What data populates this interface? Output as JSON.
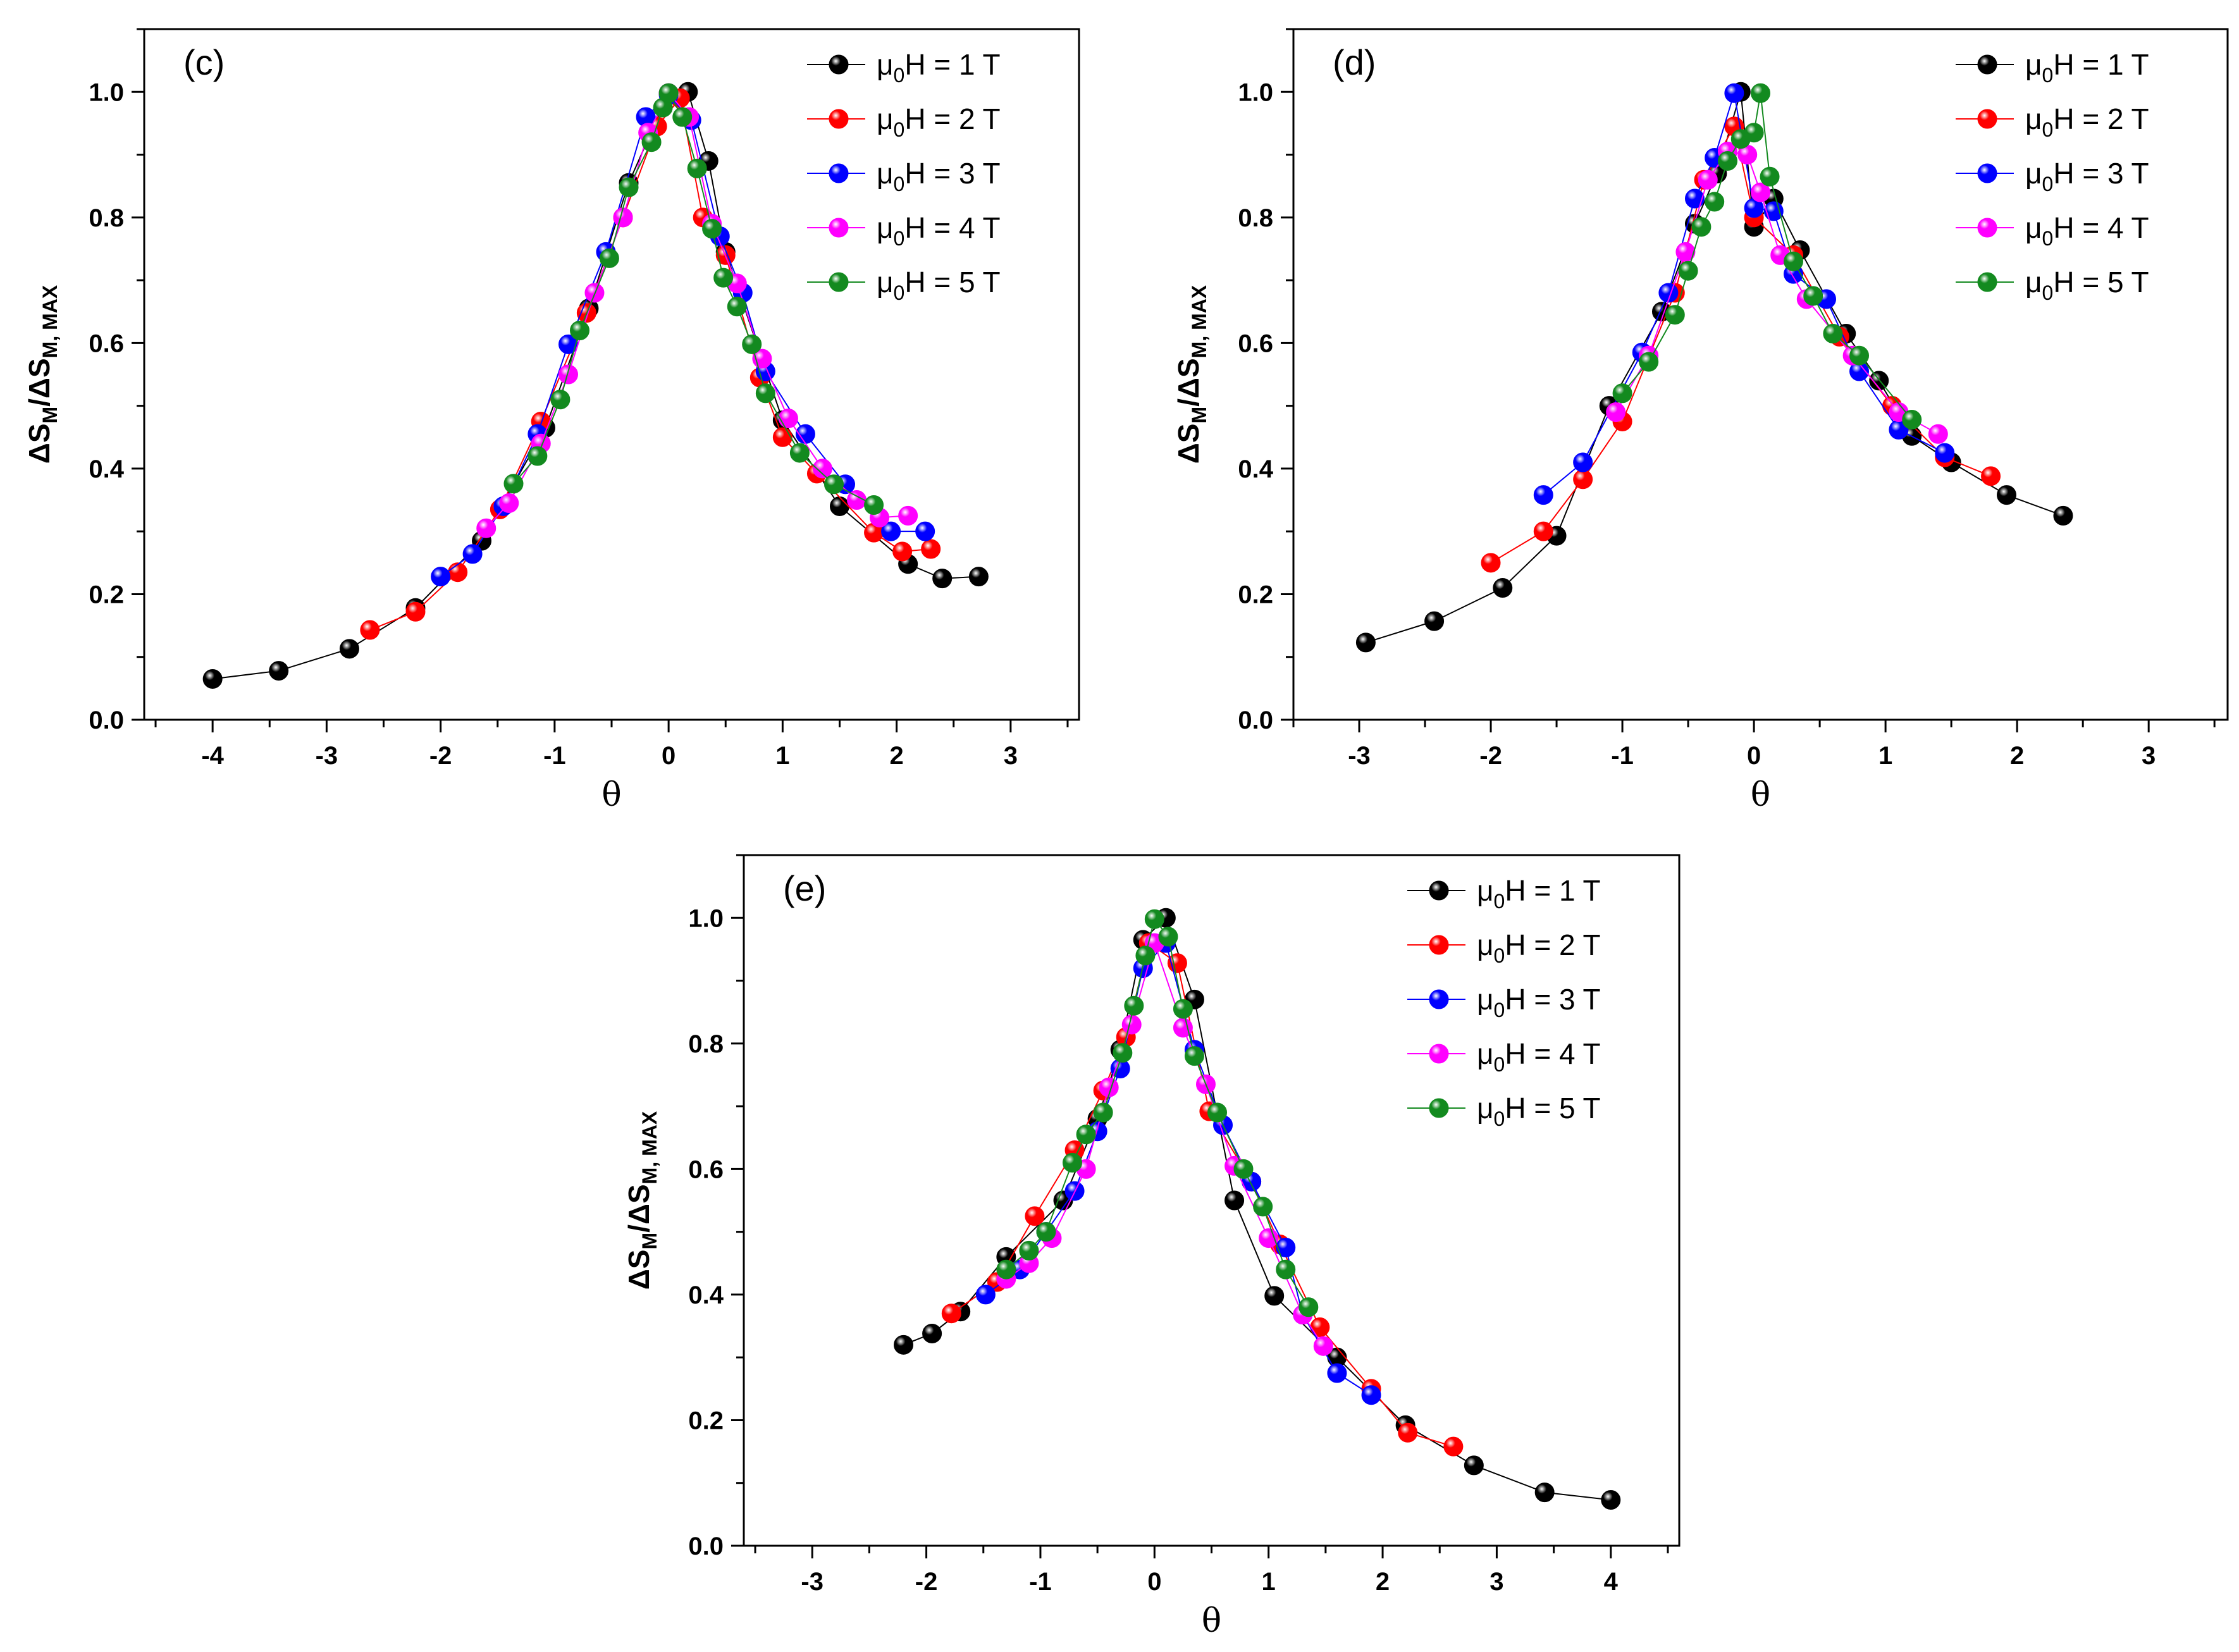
{
  "chart_data": [
    {
      "type": "scatter",
      "panel_label": "(c)",
      "xlabel": "θ",
      "ylabel": {
        "prefix": "ΔS",
        "sub1": "M",
        "mid": "/ΔS",
        "sub2": "M, MAX"
      },
      "xlim": [
        -4.6,
        3.6
      ],
      "ylim": [
        0,
        1.1
      ],
      "xticks": [
        -4,
        -3,
        -2,
        -1,
        0,
        1,
        2,
        3
      ],
      "yticks": [
        0.0,
        0.2,
        0.4,
        0.6,
        0.8,
        1.0
      ],
      "ytick_labels": [
        "0.0",
        "0.2",
        "0.4",
        "0.6",
        "0.8",
        "1.0"
      ],
      "legend_position": "top-right",
      "series": [
        {
          "name": {
            "pre": "μ",
            "sub": "0",
            "post": "H = 1 T"
          },
          "color": "#000000",
          "x": [
            -4.0,
            -3.42,
            -2.8,
            -2.22,
            -1.64,
            -1.08,
            -0.7,
            -0.35,
            0.0,
            0.17,
            0.35,
            0.5,
            1.0,
            1.5,
            2.1,
            2.4,
            2.72
          ],
          "y": [
            0.065,
            0.078,
            0.113,
            0.178,
            0.285,
            0.465,
            0.655,
            0.855,
            0.998,
            1.0,
            0.89,
            0.745,
            0.477,
            0.34,
            0.248,
            0.225,
            0.228
          ]
        },
        {
          "name": {
            "pre": "μ",
            "sub": "0",
            "post": "H = 2 T"
          },
          "color": "#ff0000",
          "x": [
            -2.62,
            -2.22,
            -1.85,
            -1.48,
            -1.12,
            -0.72,
            -0.4,
            -0.1,
            0.1,
            0.3,
            0.5,
            0.8,
            1.0,
            1.3,
            1.8,
            2.05,
            2.3
          ],
          "y": [
            0.143,
            0.172,
            0.235,
            0.335,
            0.475,
            0.648,
            0.8,
            0.945,
            0.99,
            0.8,
            0.74,
            0.545,
            0.45,
            0.392,
            0.298,
            0.268,
            0.272
          ]
        },
        {
          "name": {
            "pre": "μ",
            "sub": "0",
            "post": "H = 3 T"
          },
          "color": "#0000ff",
          "x": [
            -2.0,
            -1.72,
            -1.45,
            -1.15,
            -0.88,
            -0.55,
            -0.2,
            0.0,
            0.2,
            0.45,
            0.65,
            0.85,
            1.2,
            1.55,
            1.95,
            2.25
          ],
          "y": [
            0.228,
            0.264,
            0.34,
            0.455,
            0.598,
            0.745,
            0.96,
            0.995,
            0.955,
            0.77,
            0.68,
            0.555,
            0.455,
            0.375,
            0.3,
            0.3
          ]
        },
        {
          "name": {
            "pre": "μ",
            "sub": "0",
            "post": "H = 4 T"
          },
          "color": "#ff00ff",
          "x": [
            -1.6,
            -1.4,
            -1.12,
            -0.88,
            -0.65,
            -0.4,
            -0.18,
            0.0,
            0.18,
            0.38,
            0.6,
            0.82,
            1.05,
            1.35,
            1.65,
            1.85,
            2.1
          ],
          "y": [
            0.305,
            0.345,
            0.44,
            0.55,
            0.68,
            0.8,
            0.935,
            0.998,
            0.96,
            0.79,
            0.695,
            0.575,
            0.48,
            0.4,
            0.35,
            0.322,
            0.325
          ]
        },
        {
          "name": {
            "pre": "μ",
            "sub": "0",
            "post": "H = 5 T"
          },
          "color": "#138a1f",
          "x": [
            -1.36,
            -1.15,
            -0.95,
            -0.78,
            -0.52,
            -0.35,
            -0.15,
            -0.05,
            0.0,
            0.12,
            0.25,
            0.38,
            0.48,
            0.6,
            0.73,
            0.85,
            1.15,
            1.45,
            1.8
          ],
          "y": [
            0.376,
            0.42,
            0.51,
            0.62,
            0.735,
            0.848,
            0.92,
            0.975,
            0.998,
            0.96,
            0.878,
            0.782,
            0.704,
            0.658,
            0.598,
            0.52,
            0.425,
            0.375,
            0.342
          ]
        }
      ]
    },
    {
      "type": "scatter",
      "panel_label": "(d)",
      "xlabel": "θ",
      "ylabel": {
        "prefix": "ΔS",
        "sub1": "M",
        "mid": "/ΔS",
        "sub2": "M, MAX"
      },
      "xlim": [
        -3.5,
        3.6
      ],
      "ylim": [
        0,
        1.1
      ],
      "xticks": [
        -3,
        -2,
        -1,
        0,
        1,
        2,
        3
      ],
      "yticks": [
        0.0,
        0.2,
        0.4,
        0.6,
        0.8,
        1.0
      ],
      "ytick_labels": [
        "0.0",
        "0.2",
        "0.4",
        "0.6",
        "0.8",
        "1.0"
      ],
      "legend_position": "top-right",
      "series": [
        {
          "name": {
            "pre": "μ",
            "sub": "0",
            "post": "H = 1 T"
          },
          "color": "#000000",
          "x": [
            -2.95,
            -2.43,
            -1.91,
            -1.5,
            -1.1,
            -0.7,
            -0.45,
            -0.28,
            -0.1,
            0.0,
            0.15,
            0.35,
            0.7,
            0.95,
            1.2,
            1.5,
            1.92,
            2.35
          ],
          "y": [
            0.123,
            0.157,
            0.21,
            0.293,
            0.5,
            0.65,
            0.79,
            0.87,
            1.0,
            0.785,
            0.83,
            0.748,
            0.615,
            0.54,
            0.452,
            0.41,
            0.358,
            0.325
          ]
        },
        {
          "name": {
            "pre": "μ",
            "sub": "0",
            "post": "H = 2 T"
          },
          "color": "#ff0000",
          "x": [
            -2.0,
            -1.6,
            -1.3,
            -1.0,
            -0.6,
            -0.38,
            -0.15,
            0.0,
            0.3,
            0.65,
            1.05,
            1.45,
            1.8
          ],
          "y": [
            0.25,
            0.3,
            0.383,
            0.475,
            0.68,
            0.86,
            0.945,
            0.8,
            0.74,
            0.61,
            0.5,
            0.418,
            0.388
          ]
        },
        {
          "name": {
            "pre": "μ",
            "sub": "0",
            "post": "H = 3 T"
          },
          "color": "#0000ff",
          "x": [
            -1.6,
            -1.3,
            -0.85,
            -0.65,
            -0.45,
            -0.3,
            -0.15,
            0.0,
            0.15,
            0.3,
            0.55,
            0.8,
            1.1,
            1.45
          ],
          "y": [
            0.358,
            0.41,
            0.585,
            0.68,
            0.83,
            0.895,
            0.998,
            0.815,
            0.81,
            0.71,
            0.67,
            0.555,
            0.462,
            0.425
          ]
        },
        {
          "name": {
            "pre": "μ",
            "sub": "0",
            "post": "H = 4 T"
          },
          "color": "#ff00ff",
          "x": [
            -1.05,
            -0.8,
            -0.52,
            -0.35,
            -0.2,
            -0.05,
            0.05,
            0.2,
            0.4,
            0.75,
            1.1,
            1.4
          ],
          "y": [
            0.49,
            0.58,
            0.745,
            0.86,
            0.905,
            0.9,
            0.84,
            0.74,
            0.67,
            0.58,
            0.49,
            0.455
          ]
        },
        {
          "name": {
            "pre": "μ",
            "sub": "0",
            "post": "H = 5 T"
          },
          "color": "#138a1f",
          "x": [
            -1.0,
            -0.8,
            -0.6,
            -0.5,
            -0.4,
            -0.3,
            -0.2,
            -0.1,
            0.0,
            0.05,
            0.12,
            0.3,
            0.45,
            0.6,
            0.8,
            1.2
          ],
          "y": [
            0.52,
            0.57,
            0.645,
            0.715,
            0.785,
            0.825,
            0.89,
            0.925,
            0.935,
            0.998,
            0.865,
            0.73,
            0.675,
            0.615,
            0.58,
            0.478
          ]
        }
      ]
    },
    {
      "type": "scatter",
      "panel_label": "(e)",
      "xlabel": "θ",
      "ylabel": {
        "prefix": "ΔS",
        "sub1": "M",
        "mid": "/ΔS",
        "sub2": "M, MAX"
      },
      "xlim": [
        -3.6,
        4.6
      ],
      "ylim": [
        0,
        1.1
      ],
      "xticks": [
        -3,
        -2,
        -1,
        0,
        1,
        2,
        3,
        4
      ],
      "yticks": [
        0.0,
        0.2,
        0.4,
        0.6,
        0.8,
        1.0
      ],
      "ytick_labels": [
        "0.0",
        "0.2",
        "0.4",
        "0.6",
        "0.8",
        "1.0"
      ],
      "legend_position": "top-right",
      "series": [
        {
          "name": {
            "pre": "μ",
            "sub": "0",
            "post": "H = 1 T"
          },
          "color": "#000000",
          "x": [
            -2.2,
            -1.95,
            -1.7,
            -1.3,
            -0.8,
            -0.5,
            -0.3,
            -0.1,
            0.1,
            0.35,
            0.7,
            1.05,
            1.6,
            2.2,
            2.8,
            3.42,
            4.0
          ],
          "y": [
            0.32,
            0.338,
            0.373,
            0.46,
            0.55,
            0.68,
            0.79,
            0.965,
            1.0,
            0.87,
            0.55,
            0.398,
            0.3,
            0.192,
            0.128,
            0.085,
            0.073
          ]
        },
        {
          "name": {
            "pre": "μ",
            "sub": "0",
            "post": "H = 2 T"
          },
          "color": "#ff0000",
          "x": [
            -1.78,
            -1.38,
            -1.05,
            -0.7,
            -0.45,
            -0.25,
            -0.05,
            0.2,
            0.48,
            0.85,
            1.1,
            1.45,
            1.9,
            2.22,
            2.62
          ],
          "y": [
            0.37,
            0.42,
            0.525,
            0.63,
            0.725,
            0.81,
            0.96,
            0.928,
            0.692,
            0.58,
            0.48,
            0.348,
            0.25,
            0.18,
            0.158
          ]
        },
        {
          "name": {
            "pre": "μ",
            "sub": "0",
            "post": "H = 3 T"
          },
          "color": "#0000ff",
          "x": [
            -1.48,
            -1.18,
            -0.95,
            -0.7,
            -0.5,
            -0.3,
            -0.1,
            0.1,
            0.35,
            0.6,
            0.85,
            1.15,
            1.3,
            1.6,
            1.9
          ],
          "y": [
            0.4,
            0.44,
            0.5,
            0.565,
            0.66,
            0.76,
            0.92,
            0.96,
            0.79,
            0.67,
            0.58,
            0.475,
            0.368,
            0.275,
            0.24
          ]
        },
        {
          "name": {
            "pre": "μ",
            "sub": "0",
            "post": "H = 4 T"
          },
          "color": "#ff00ff",
          "x": [
            -1.3,
            -1.1,
            -0.9,
            -0.6,
            -0.4,
            -0.2,
            0.0,
            0.25,
            0.45,
            0.7,
            1.0,
            1.3,
            1.48
          ],
          "y": [
            0.425,
            0.45,
            0.49,
            0.6,
            0.73,
            0.83,
            0.96,
            0.825,
            0.735,
            0.605,
            0.49,
            0.368,
            0.318
          ]
        },
        {
          "name": {
            "pre": "μ",
            "sub": "0",
            "post": "H = 5 T"
          },
          "color": "#138a1f",
          "x": [
            -1.3,
            -1.1,
            -0.95,
            -0.72,
            -0.6,
            -0.45,
            -0.28,
            -0.18,
            -0.08,
            0.0,
            0.12,
            0.25,
            0.35,
            0.55,
            0.78,
            0.95,
            1.15,
            1.35
          ],
          "y": [
            0.44,
            0.47,
            0.5,
            0.61,
            0.655,
            0.69,
            0.785,
            0.86,
            0.94,
            0.998,
            0.97,
            0.855,
            0.78,
            0.69,
            0.6,
            0.54,
            0.44,
            0.38
          ]
        }
      ]
    }
  ]
}
